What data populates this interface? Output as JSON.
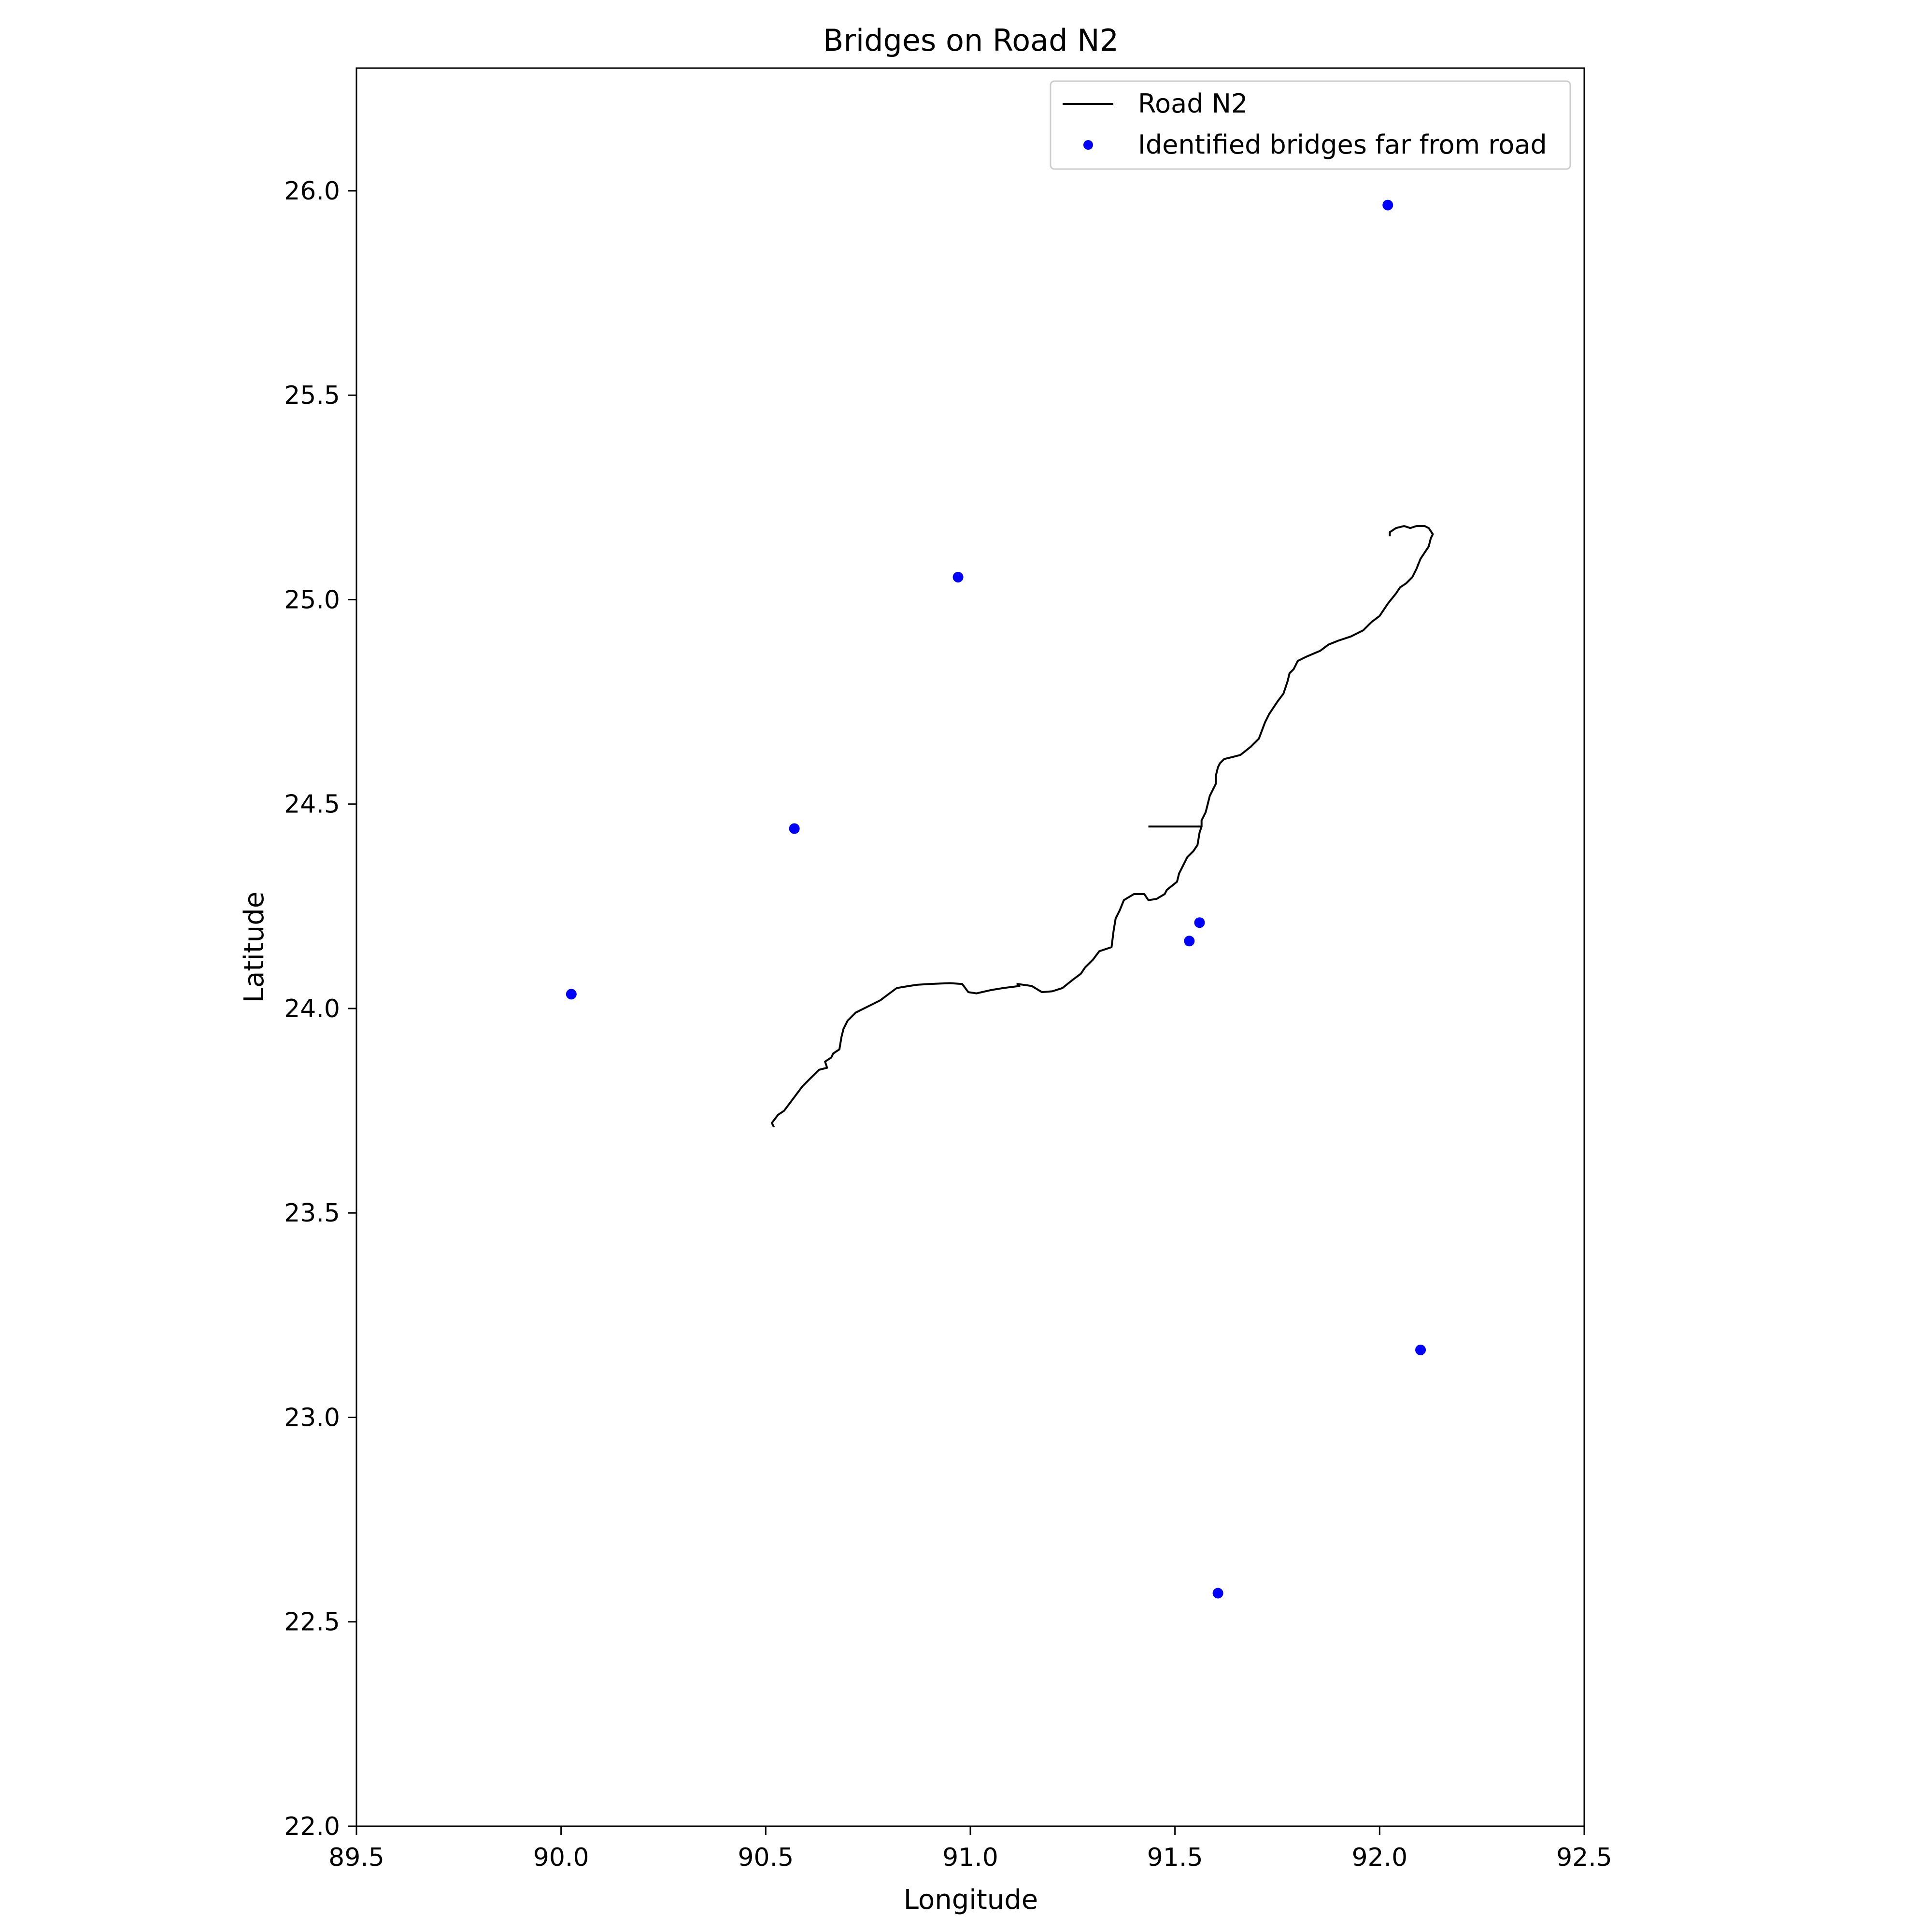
{
  "chart_data": {
    "type": "scatter",
    "title": "Bridges on Road N2",
    "xlabel": "Longitude",
    "ylabel": "Latitude",
    "xlim": [
      89.5,
      92.5
    ],
    "ylim": [
      22.0,
      26.3
    ],
    "xticks": [
      89.5,
      90.0,
      90.5,
      91.0,
      91.5,
      92.0,
      92.5
    ],
    "xtick_labels": [
      "89.5",
      "90.0",
      "90.5",
      "91.0",
      "91.5",
      "92.0",
      "92.5"
    ],
    "yticks": [
      22.0,
      22.5,
      23.0,
      23.5,
      24.0,
      24.5,
      25.0,
      25.5,
      26.0
    ],
    "ytick_labels": [
      "22.0",
      "22.5",
      "23.0",
      "23.5",
      "24.0",
      "24.5",
      "25.0",
      "25.5",
      "26.0"
    ],
    "grid": false,
    "legend_position": "top-right",
    "colors": {
      "road": "#000000",
      "bridges": "#0000ff"
    },
    "series": [
      {
        "name": "Road N2",
        "kind": "line",
        "x": [
          90.52,
          90.515,
          90.53,
          90.545,
          90.56,
          90.575,
          90.59,
          90.61,
          90.63,
          90.65,
          90.645,
          90.66,
          90.665,
          90.68,
          90.685,
          90.69,
          90.7,
          90.72,
          90.76,
          90.78,
          90.8,
          90.82,
          90.85,
          90.87,
          90.9,
          90.95,
          90.98,
          90.995,
          91.015,
          91.05,
          91.08,
          91.12,
          91.115,
          91.15,
          91.175,
          91.2,
          91.225,
          91.25,
          91.27,
          91.28,
          91.3,
          91.315,
          91.345,
          91.35,
          91.355,
          91.365,
          91.375,
          91.4,
          91.425,
          91.435,
          91.455,
          91.475,
          91.48,
          91.505,
          91.51,
          91.52,
          91.53,
          91.545,
          91.555,
          91.56,
          91.565,
          91.565,
          91.575,
          91.58,
          91.585,
          91.595,
          91.6,
          91.6,
          91.605,
          91.61,
          91.62,
          91.64,
          91.66,
          91.685,
          91.705,
          91.72,
          91.73,
          91.74,
          91.75,
          91.765,
          91.775,
          91.78,
          91.79,
          91.8,
          91.82,
          91.855,
          91.875,
          91.88,
          91.9,
          91.93,
          91.96,
          91.98,
          92.0,
          92.02,
          92.04,
          92.05,
          92.065,
          92.08,
          92.09,
          92.1,
          92.12,
          92.125,
          92.13,
          92.12,
          92.11,
          92.09,
          92.075,
          92.06,
          92.04,
          92.025,
          92.025
        ],
        "y": [
          23.71,
          23.72,
          23.74,
          23.75,
          23.77,
          23.79,
          23.81,
          23.83,
          23.85,
          23.855,
          23.87,
          23.88,
          23.89,
          23.9,
          23.93,
          23.95,
          23.97,
          23.99,
          24.01,
          24.02,
          24.035,
          24.05,
          24.055,
          24.058,
          24.06,
          24.062,
          24.06,
          24.04,
          24.037,
          24.045,
          24.05,
          24.055,
          24.06,
          24.055,
          24.04,
          24.042,
          24.05,
          24.07,
          24.085,
          24.1,
          24.12,
          24.14,
          24.15,
          24.19,
          24.22,
          24.24,
          24.265,
          24.28,
          24.28,
          24.265,
          24.268,
          24.28,
          24.29,
          24.31,
          24.33,
          24.35,
          24.37,
          24.385,
          24.4,
          24.43,
          24.445,
          24.46,
          24.48,
          24.5,
          24.52,
          24.54,
          24.55,
          24.57,
          24.59,
          24.6,
          24.61,
          24.615,
          24.62,
          24.64,
          24.66,
          24.7,
          24.72,
          24.735,
          24.75,
          24.77,
          24.8,
          24.82,
          24.83,
          24.85,
          24.86,
          24.875,
          24.89,
          24.892,
          24.9,
          24.91,
          24.925,
          24.945,
          24.96,
          24.99,
          25.015,
          25.03,
          25.04,
          25.055,
          25.075,
          25.1,
          25.13,
          25.15,
          25.16,
          25.175,
          25.18,
          25.18,
          25.175,
          25.18,
          25.175,
          25.165,
          25.155
        ],
        "branch_x": [
          91.435,
          91.565
        ],
        "branch_y": [
          24.445,
          24.445
        ]
      },
      {
        "name": "Identified bridges far from road",
        "kind": "scatter",
        "x": [
          92.02,
          90.97,
          90.57,
          91.56,
          91.535,
          90.025,
          92.1,
          91.605
        ],
        "y": [
          25.965,
          25.055,
          24.44,
          24.21,
          24.165,
          24.035,
          23.165,
          22.57
        ]
      }
    ]
  }
}
